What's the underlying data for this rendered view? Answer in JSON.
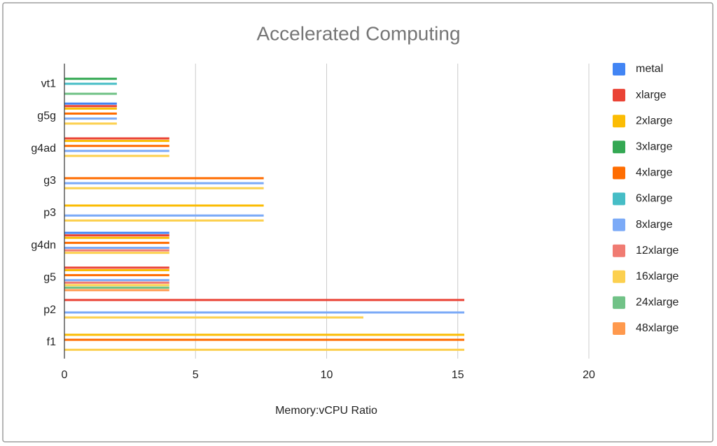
{
  "chart_data": {
    "type": "hbar",
    "title": "Accelerated Computing",
    "x_label": "Memory:vCPU Ratio",
    "categories": [
      "vt1",
      "g5g",
      "g4ad",
      "g3",
      "p3",
      "g4dn",
      "g5",
      "p2",
      "f1"
    ],
    "xlim": [
      0,
      20
    ],
    "xticks": [
      0,
      5,
      10,
      15,
      20
    ],
    "grid": true,
    "legend": "right",
    "series": [
      {
        "name": "metal",
        "color": "#4285f4",
        "values": [
          null,
          2,
          null,
          null,
          null,
          4,
          null,
          null,
          null
        ]
      },
      {
        "name": "xlarge",
        "color": "#ea4335",
        "values": [
          null,
          2,
          4,
          null,
          null,
          4,
          4,
          15.25,
          null
        ]
      },
      {
        "name": "2xlarge",
        "color": "#fbbc04",
        "values": [
          null,
          2,
          4,
          null,
          7.6,
          4,
          4,
          null,
          15.25
        ]
      },
      {
        "name": "3xlarge",
        "color": "#34a853",
        "values": [
          2,
          null,
          null,
          null,
          null,
          null,
          null,
          null,
          null
        ]
      },
      {
        "name": "4xlarge",
        "color": "#ff6d01",
        "values": [
          null,
          2,
          4,
          7.6,
          null,
          4,
          4,
          null,
          15.25
        ]
      },
      {
        "name": "6xlarge",
        "color": "#46bdc6",
        "values": [
          2,
          null,
          null,
          null,
          null,
          null,
          null,
          null,
          null
        ]
      },
      {
        "name": "8xlarge",
        "color": "#7baaf7",
        "values": [
          null,
          2,
          4,
          7.6,
          7.6,
          4,
          4,
          15.25,
          null
        ]
      },
      {
        "name": "12xlarge",
        "color": "#f07b72",
        "values": [
          null,
          null,
          null,
          null,
          null,
          4,
          4,
          null,
          null
        ]
      },
      {
        "name": "16xlarge",
        "color": "#fcd04f",
        "values": [
          null,
          2,
          4,
          7.6,
          7.6,
          4,
          4,
          11.4,
          15.25
        ]
      },
      {
        "name": "24xlarge",
        "color": "#71c287",
        "values": [
          2,
          null,
          null,
          null,
          null,
          null,
          4,
          null,
          null
        ]
      },
      {
        "name": "48xlarge",
        "color": "#ff994d",
        "values": [
          null,
          null,
          null,
          null,
          null,
          null,
          4,
          null,
          null
        ]
      }
    ]
  }
}
